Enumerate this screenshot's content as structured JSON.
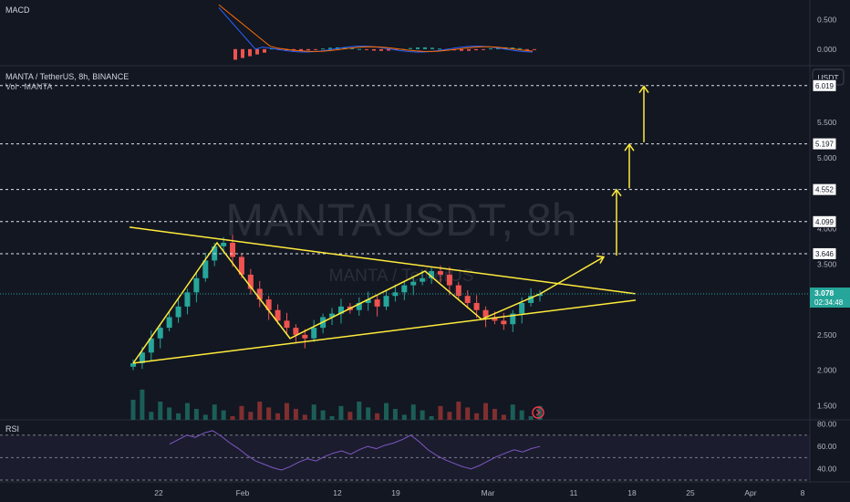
{
  "panes": {
    "macd": {
      "label": "MACD",
      "ticks": [
        "0.500",
        "0.000"
      ]
    },
    "main": {
      "symbol_line": "MANTA / TetherUS, 8h, BINANCE",
      "volume_line": "Vol · MANTA",
      "currency_button": "USDT",
      "watermark": "MANTAUSDT, 8h",
      "watermark_sub": "MANTA / TetherUS",
      "ticks": [
        "6.000",
        "5.500",
        "5.000",
        "4.500",
        "4.000",
        "3.500",
        "2.500",
        "2.000",
        "1.500"
      ],
      "current_price": "3.078",
      "countdown": "02:34:48"
    },
    "rsi": {
      "label": "RSI",
      "ticks": [
        "80.00",
        "60.00",
        "40.00"
      ]
    }
  },
  "x_axis": {
    "ticks": [
      "22",
      "Feb",
      "12",
      "19",
      "Mar",
      "11",
      "18",
      "25",
      "Apr",
      "8"
    ]
  },
  "chart_data": {
    "type": "candlestick",
    "symbol": "MANTAUSDT",
    "interval": "8h",
    "exchange": "BINANCE",
    "price_range": [
      1.3,
      6.3
    ],
    "current_price": 3.078,
    "target_levels": [
      3.646,
      4.099,
      4.552,
      5.197,
      6.019
    ],
    "close_series": [
      2.1,
      2.25,
      2.45,
      2.6,
      2.75,
      2.9,
      3.1,
      3.3,
      3.55,
      3.75,
      3.8,
      3.6,
      3.35,
      3.15,
      3.0,
      2.85,
      2.7,
      2.6,
      2.5,
      2.45,
      2.6,
      2.75,
      2.8,
      2.9,
      2.85,
      2.95,
      3.0,
      2.9,
      3.05,
      3.1,
      3.2,
      3.25,
      3.3,
      3.4,
      3.35,
      3.2,
      3.05,
      2.95,
      2.85,
      2.75,
      2.7,
      2.65,
      2.8,
      2.95,
      3.05,
      3.078
    ],
    "macd_range": [
      -0.25,
      0.8
    ],
    "rsi_range": [
      30,
      82
    ],
    "rsi_series": [
      62,
      66,
      70,
      68,
      72,
      74,
      69,
      63,
      58,
      52,
      47,
      44,
      41,
      39,
      42,
      46,
      49,
      47,
      51,
      54,
      56,
      53,
      57,
      60,
      58,
      61,
      63,
      66,
      70,
      64,
      57,
      52,
      48,
      45,
      42,
      40,
      43,
      47,
      51,
      54,
      57,
      55,
      58,
      60
    ]
  }
}
